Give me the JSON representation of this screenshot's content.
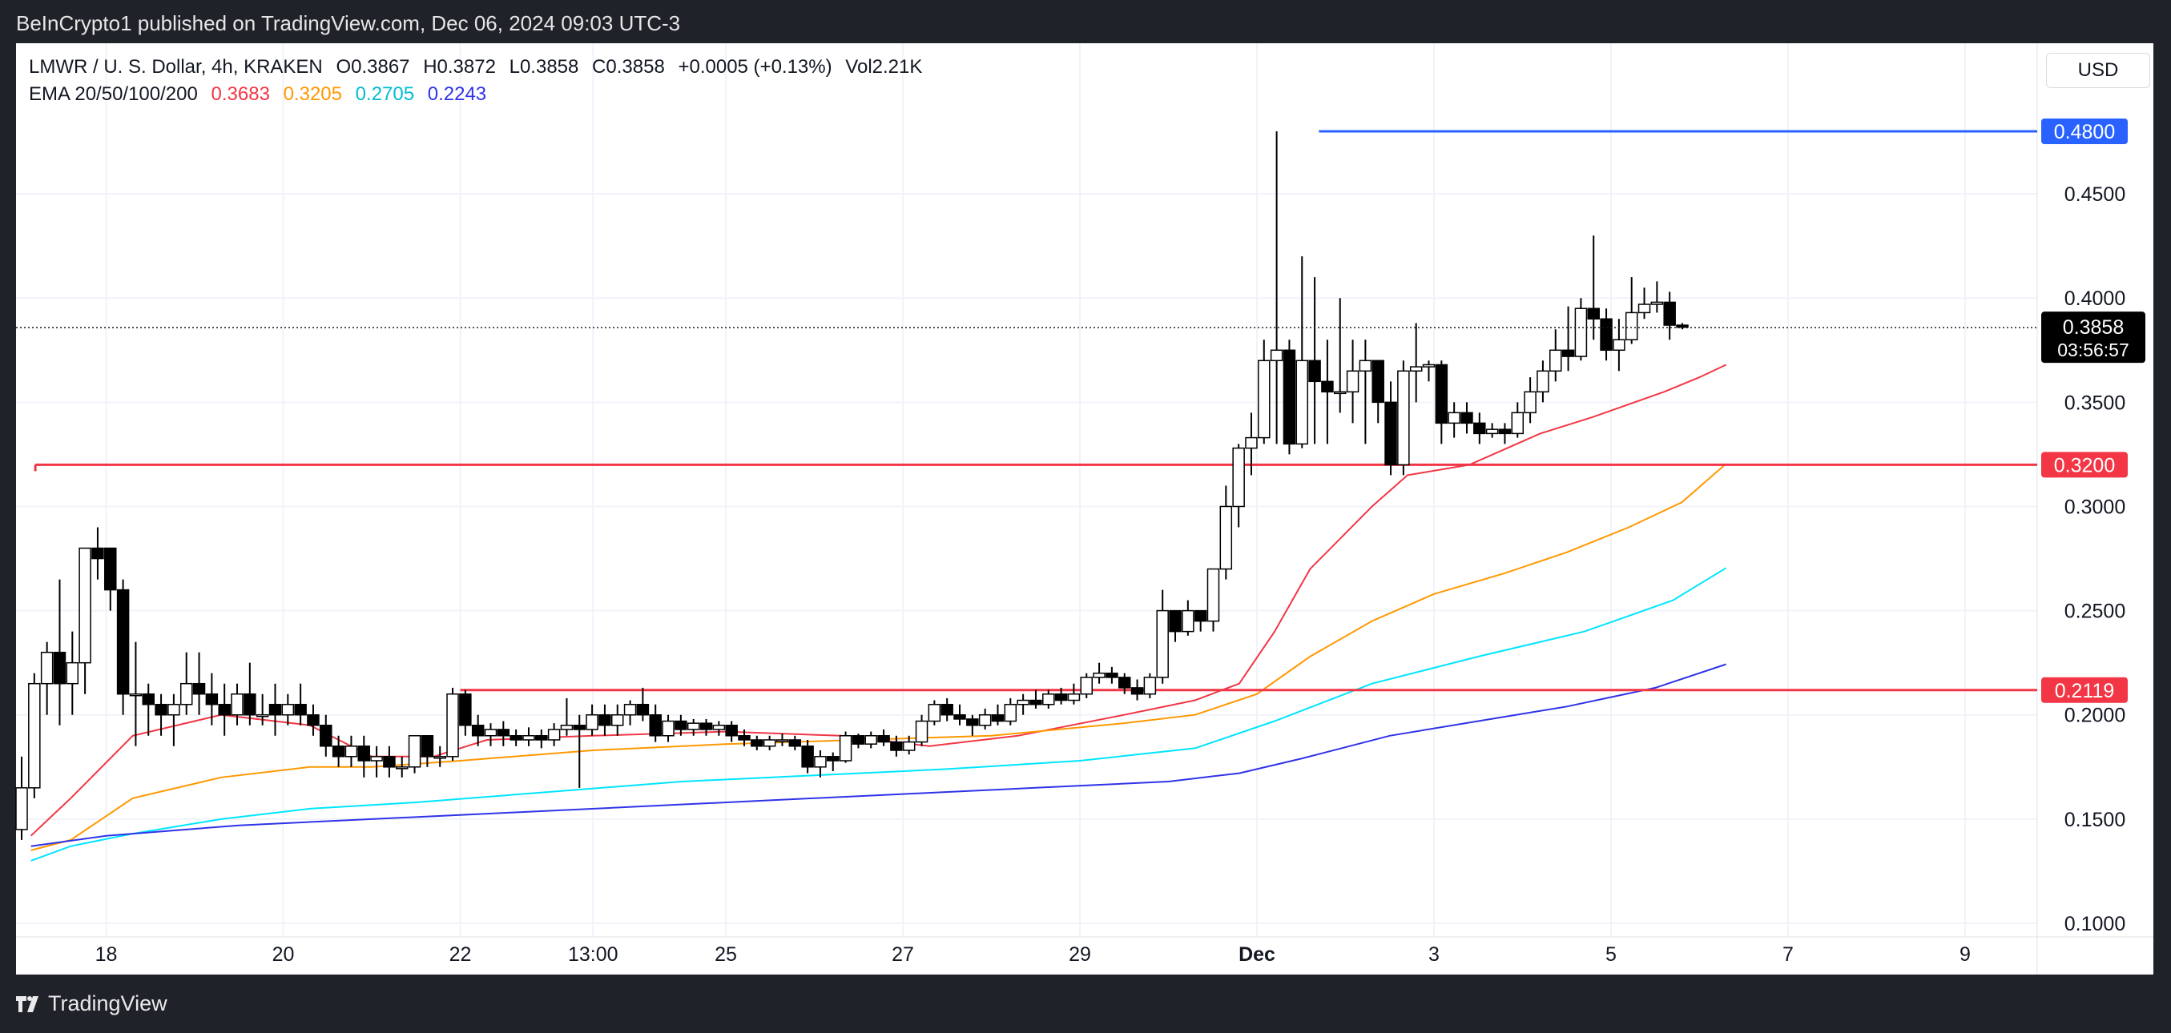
{
  "header": {
    "publisher_text": "BeInCrypto1 published on TradingView.com, Dec 06, 2024 09:03 UTC-3"
  },
  "legend": {
    "symbol": "LMWR / U. S. Dollar, 4h, KRAKEN",
    "open": "O0.3867",
    "high": "H0.3872",
    "low": "L0.3858",
    "close": "C0.3858",
    "change": "+0.0005 (+0.13%)",
    "volume": "Vol2.21K",
    "ema_label": "EMA 20/50/100/200",
    "ema_values": [
      "0.3683",
      "0.3205",
      "0.2705",
      "0.2243"
    ]
  },
  "currency_button": "USD",
  "footer": {
    "brand": "TradingView"
  },
  "colors": {
    "ema20": "#f23645",
    "ema50": "#ff9800",
    "ema100": "#00e5ff",
    "ema200": "#2f33e8",
    "resistance_high": "#2962ff",
    "support": "#f23645",
    "up_body": "#ffffff",
    "down_body": "#000000"
  },
  "chart_data": {
    "type": "candlestick",
    "timeframe": "4h",
    "ylim": [
      0.095,
      0.505
    ],
    "price_ticks": [
      "0.1000",
      "0.1500",
      "0.2000",
      "0.2500",
      "0.3000",
      "0.3500",
      "0.4000",
      "0.4500"
    ],
    "x_ticks": [
      {
        "label": "18",
        "day": 18
      },
      {
        "label": "20",
        "day": 20
      },
      {
        "label": "22",
        "day": 22
      },
      {
        "label": "13:00",
        "day": 23.5
      },
      {
        "label": "25",
        "day": 25
      },
      {
        "label": "27",
        "day": 27
      },
      {
        "label": "29",
        "day": 29
      },
      {
        "label": "Dec",
        "day": 31,
        "bold": true
      },
      {
        "label": "3",
        "day": 33
      },
      {
        "label": "5",
        "day": 35
      },
      {
        "label": "7",
        "day": 37
      },
      {
        "label": "9",
        "day": 39
      }
    ],
    "horizontal_levels": [
      {
        "price": 0.48,
        "label": "0.4800",
        "color": "#2962ff",
        "from_day": 31.7
      },
      {
        "price": 0.32,
        "label": "0.3200",
        "color": "#f23645",
        "from_day": 17.2
      },
      {
        "price": 0.2119,
        "label": "0.2119",
        "color": "#f23645",
        "from_day": 22
      }
    ],
    "last_price": {
      "price": 0.3858,
      "label": "0.3858",
      "countdown": "03:56:57"
    },
    "candles": [
      [
        0.145,
        0.165,
        0.14,
        0.18
      ],
      [
        0.165,
        0.215,
        0.16,
        0.22
      ],
      [
        0.215,
        0.23,
        0.2,
        0.235
      ],
      [
        0.23,
        0.215,
        0.195,
        0.265
      ],
      [
        0.215,
        0.225,
        0.2,
        0.24
      ],
      [
        0.225,
        0.28,
        0.21,
        0.28
      ],
      [
        0.28,
        0.275,
        0.265,
        0.29
      ],
      [
        0.28,
        0.26,
        0.25,
        0.28
      ],
      [
        0.26,
        0.21,
        0.2,
        0.265
      ],
      [
        0.21,
        0.21,
        0.185,
        0.235
      ],
      [
        0.21,
        0.205,
        0.19,
        0.215
      ],
      [
        0.205,
        0.2,
        0.19,
        0.21
      ],
      [
        0.2,
        0.205,
        0.185,
        0.21
      ],
      [
        0.205,
        0.215,
        0.2,
        0.23
      ],
      [
        0.215,
        0.21,
        0.2,
        0.23
      ],
      [
        0.21,
        0.205,
        0.195,
        0.22
      ],
      [
        0.205,
        0.2,
        0.19,
        0.215
      ],
      [
        0.2,
        0.21,
        0.195,
        0.215
      ],
      [
        0.21,
        0.2,
        0.195,
        0.225
      ],
      [
        0.2,
        0.2,
        0.195,
        0.21
      ],
      [
        0.205,
        0.2,
        0.19,
        0.215
      ],
      [
        0.2,
        0.205,
        0.195,
        0.21
      ],
      [
        0.205,
        0.2,
        0.195,
        0.215
      ],
      [
        0.2,
        0.195,
        0.19,
        0.205
      ],
      [
        0.195,
        0.185,
        0.18,
        0.2
      ],
      [
        0.185,
        0.18,
        0.175,
        0.19
      ],
      [
        0.18,
        0.185,
        0.175,
        0.19
      ],
      [
        0.185,
        0.178,
        0.17,
        0.19
      ],
      [
        0.178,
        0.18,
        0.17,
        0.185
      ],
      [
        0.18,
        0.175,
        0.17,
        0.185
      ],
      [
        0.175,
        0.175,
        0.17,
        0.18
      ],
      [
        0.175,
        0.19,
        0.172,
        0.19
      ],
      [
        0.19,
        0.18,
        0.175,
        0.19
      ],
      [
        0.18,
        0.18,
        0.175,
        0.185
      ],
      [
        0.18,
        0.21,
        0.178,
        0.213
      ],
      [
        0.21,
        0.195,
        0.19,
        0.212
      ],
      [
        0.195,
        0.19,
        0.185,
        0.2
      ],
      [
        0.19,
        0.193,
        0.185,
        0.196
      ],
      [
        0.193,
        0.19,
        0.185,
        0.197
      ],
      [
        0.19,
        0.188,
        0.185,
        0.193
      ],
      [
        0.188,
        0.19,
        0.185,
        0.194
      ],
      [
        0.19,
        0.188,
        0.184,
        0.193
      ],
      [
        0.188,
        0.193,
        0.185,
        0.196
      ],
      [
        0.193,
        0.195,
        0.19,
        0.208
      ],
      [
        0.195,
        0.193,
        0.165,
        0.2
      ],
      [
        0.193,
        0.2,
        0.19,
        0.205
      ],
      [
        0.2,
        0.195,
        0.19,
        0.205
      ],
      [
        0.195,
        0.2,
        0.19,
        0.205
      ],
      [
        0.2,
        0.205,
        0.195,
        0.207
      ],
      [
        0.205,
        0.2,
        0.197,
        0.213
      ],
      [
        0.2,
        0.19,
        0.187,
        0.205
      ],
      [
        0.19,
        0.197,
        0.187,
        0.2
      ],
      [
        0.197,
        0.193,
        0.19,
        0.2
      ],
      [
        0.193,
        0.196,
        0.19,
        0.198
      ],
      [
        0.196,
        0.193,
        0.19,
        0.198
      ],
      [
        0.193,
        0.195,
        0.19,
        0.197
      ],
      [
        0.195,
        0.19,
        0.187,
        0.197
      ],
      [
        0.19,
        0.188,
        0.185,
        0.193
      ],
      [
        0.188,
        0.185,
        0.183,
        0.19
      ],
      [
        0.185,
        0.188,
        0.183,
        0.19
      ],
      [
        0.188,
        0.188,
        0.185,
        0.191
      ],
      [
        0.188,
        0.185,
        0.183,
        0.19
      ],
      [
        0.185,
        0.175,
        0.172,
        0.188
      ],
      [
        0.175,
        0.18,
        0.17,
        0.183
      ],
      [
        0.18,
        0.178,
        0.173,
        0.182
      ],
      [
        0.178,
        0.19,
        0.177,
        0.192
      ],
      [
        0.19,
        0.186,
        0.184,
        0.191
      ],
      [
        0.186,
        0.19,
        0.184,
        0.192
      ],
      [
        0.19,
        0.187,
        0.185,
        0.193
      ],
      [
        0.187,
        0.183,
        0.18,
        0.19
      ],
      [
        0.183,
        0.187,
        0.181,
        0.19
      ],
      [
        0.187,
        0.197,
        0.185,
        0.2
      ],
      [
        0.197,
        0.205,
        0.195,
        0.207
      ],
      [
        0.205,
        0.2,
        0.197,
        0.208
      ],
      [
        0.2,
        0.198,
        0.195,
        0.205
      ],
      [
        0.198,
        0.195,
        0.19,
        0.2
      ],
      [
        0.195,
        0.2,
        0.193,
        0.203
      ],
      [
        0.2,
        0.197,
        0.195,
        0.205
      ],
      [
        0.197,
        0.205,
        0.195,
        0.208
      ],
      [
        0.205,
        0.207,
        0.2,
        0.21
      ],
      [
        0.207,
        0.205,
        0.203,
        0.212
      ],
      [
        0.205,
        0.21,
        0.203,
        0.212
      ],
      [
        0.21,
        0.207,
        0.205,
        0.213
      ],
      [
        0.207,
        0.21,
        0.205,
        0.215
      ],
      [
        0.21,
        0.218,
        0.208,
        0.22
      ],
      [
        0.218,
        0.22,
        0.215,
        0.225
      ],
      [
        0.22,
        0.218,
        0.215,
        0.223
      ],
      [
        0.218,
        0.213,
        0.21,
        0.22
      ],
      [
        0.213,
        0.21,
        0.207,
        0.217
      ],
      [
        0.21,
        0.218,
        0.208,
        0.22
      ],
      [
        0.218,
        0.25,
        0.215,
        0.26
      ],
      [
        0.25,
        0.24,
        0.235,
        0.25
      ],
      [
        0.24,
        0.25,
        0.238,
        0.255
      ],
      [
        0.25,
        0.245,
        0.24,
        0.25
      ],
      [
        0.245,
        0.27,
        0.24,
        0.27
      ],
      [
        0.27,
        0.3,
        0.265,
        0.31
      ],
      [
        0.3,
        0.328,
        0.29,
        0.33
      ],
      [
        0.328,
        0.333,
        0.315,
        0.345
      ],
      [
        0.333,
        0.37,
        0.33,
        0.38
      ],
      [
        0.37,
        0.375,
        0.33,
        0.48
      ],
      [
        0.375,
        0.33,
        0.325,
        0.38
      ],
      [
        0.33,
        0.37,
        0.328,
        0.42
      ],
      [
        0.37,
        0.36,
        0.33,
        0.41
      ],
      [
        0.36,
        0.355,
        0.33,
        0.38
      ],
      [
        0.355,
        0.355,
        0.345,
        0.4
      ],
      [
        0.355,
        0.365,
        0.34,
        0.38
      ],
      [
        0.365,
        0.37,
        0.33,
        0.38
      ],
      [
        0.37,
        0.35,
        0.34,
        0.37
      ],
      [
        0.35,
        0.32,
        0.315,
        0.36
      ],
      [
        0.32,
        0.365,
        0.315,
        0.37
      ],
      [
        0.365,
        0.367,
        0.35,
        0.388
      ],
      [
        0.367,
        0.368,
        0.36,
        0.37
      ],
      [
        0.368,
        0.34,
        0.33,
        0.37
      ],
      [
        0.34,
        0.345,
        0.333,
        0.35
      ],
      [
        0.345,
        0.34,
        0.335,
        0.35
      ],
      [
        0.34,
        0.335,
        0.33,
        0.345
      ],
      [
        0.335,
        0.337,
        0.333,
        0.34
      ],
      [
        0.337,
        0.335,
        0.33,
        0.34
      ],
      [
        0.335,
        0.345,
        0.333,
        0.35
      ],
      [
        0.345,
        0.355,
        0.34,
        0.362
      ],
      [
        0.355,
        0.365,
        0.35,
        0.37
      ],
      [
        0.365,
        0.375,
        0.36,
        0.385
      ],
      [
        0.375,
        0.372,
        0.365,
        0.396
      ],
      [
        0.372,
        0.395,
        0.37,
        0.4
      ],
      [
        0.395,
        0.39,
        0.38,
        0.43
      ],
      [
        0.39,
        0.375,
        0.37,
        0.395
      ],
      [
        0.375,
        0.38,
        0.365,
        0.39
      ],
      [
        0.38,
        0.393,
        0.378,
        0.41
      ],
      [
        0.393,
        0.397,
        0.39,
        0.405
      ],
      [
        0.397,
        0.398,
        0.393,
        0.408
      ],
      [
        0.398,
        0.387,
        0.38,
        0.403
      ],
      [
        0.387,
        0.386,
        0.385,
        0.388
      ]
    ],
    "ema_series": [
      {
        "name": "EMA 20",
        "value": 0.3683,
        "color": "#f23645",
        "points": [
          [
            17.15,
            0.142
          ],
          [
            17.6,
            0.16
          ],
          [
            18.3,
            0.19
          ],
          [
            19.3,
            0.2
          ],
          [
            20.3,
            0.195
          ],
          [
            21,
            0.18
          ],
          [
            21.7,
            0.18
          ],
          [
            22.3,
            0.188
          ],
          [
            23.5,
            0.19
          ],
          [
            25,
            0.192
          ],
          [
            26.3,
            0.19
          ],
          [
            27.3,
            0.185
          ],
          [
            28.3,
            0.19
          ],
          [
            29.5,
            0.2
          ],
          [
            30.3,
            0.207
          ],
          [
            30.8,
            0.215
          ],
          [
            31.2,
            0.24
          ],
          [
            31.6,
            0.27
          ],
          [
            32.3,
            0.3
          ],
          [
            32.7,
            0.315
          ],
          [
            33.4,
            0.32
          ],
          [
            34.2,
            0.335
          ],
          [
            34.8,
            0.343
          ],
          [
            35.6,
            0.355
          ],
          [
            36.0,
            0.362
          ],
          [
            36.3,
            0.368
          ]
        ]
      },
      {
        "name": "EMA 50",
        "value": 0.3205,
        "color": "#ff9800",
        "points": [
          [
            17.15,
            0.135
          ],
          [
            17.6,
            0.14
          ],
          [
            18.3,
            0.16
          ],
          [
            19.3,
            0.17
          ],
          [
            20.3,
            0.175
          ],
          [
            21,
            0.175
          ],
          [
            22,
            0.178
          ],
          [
            23.5,
            0.183
          ],
          [
            25,
            0.186
          ],
          [
            26.5,
            0.188
          ],
          [
            28,
            0.19
          ],
          [
            29.5,
            0.196
          ],
          [
            30.3,
            0.2
          ],
          [
            31,
            0.21
          ],
          [
            31.6,
            0.228
          ],
          [
            32.3,
            0.245
          ],
          [
            33,
            0.258
          ],
          [
            33.8,
            0.268
          ],
          [
            34.5,
            0.278
          ],
          [
            35.2,
            0.29
          ],
          [
            35.8,
            0.302
          ],
          [
            36.3,
            0.3205
          ]
        ]
      },
      {
        "name": "EMA 100",
        "value": 0.2705,
        "color": "#00e5ff",
        "points": [
          [
            17.15,
            0.13
          ],
          [
            17.6,
            0.137
          ],
          [
            18.3,
            0.143
          ],
          [
            19.3,
            0.15
          ],
          [
            20.3,
            0.155
          ],
          [
            21.5,
            0.158
          ],
          [
            23,
            0.163
          ],
          [
            24.5,
            0.168
          ],
          [
            26,
            0.171
          ],
          [
            27.5,
            0.174
          ],
          [
            29,
            0.178
          ],
          [
            30.3,
            0.184
          ],
          [
            31.2,
            0.197
          ],
          [
            32.3,
            0.215
          ],
          [
            33.5,
            0.228
          ],
          [
            34.7,
            0.24
          ],
          [
            35.7,
            0.255
          ],
          [
            36.3,
            0.2705
          ]
        ]
      },
      {
        "name": "EMA 200",
        "value": 0.2243,
        "color": "#2f33e8",
        "points": [
          [
            17.15,
            0.137
          ],
          [
            18,
            0.142
          ],
          [
            19.5,
            0.147
          ],
          [
            21,
            0.15
          ],
          [
            22.5,
            0.153
          ],
          [
            24,
            0.156
          ],
          [
            25.5,
            0.159
          ],
          [
            27,
            0.162
          ],
          [
            28.5,
            0.165
          ],
          [
            30,
            0.168
          ],
          [
            30.8,
            0.172
          ],
          [
            31.5,
            0.179
          ],
          [
            32.5,
            0.19
          ],
          [
            33.5,
            0.197
          ],
          [
            34.5,
            0.204
          ],
          [
            35.5,
            0.213
          ],
          [
            36.3,
            0.2243
          ]
        ]
      }
    ]
  }
}
